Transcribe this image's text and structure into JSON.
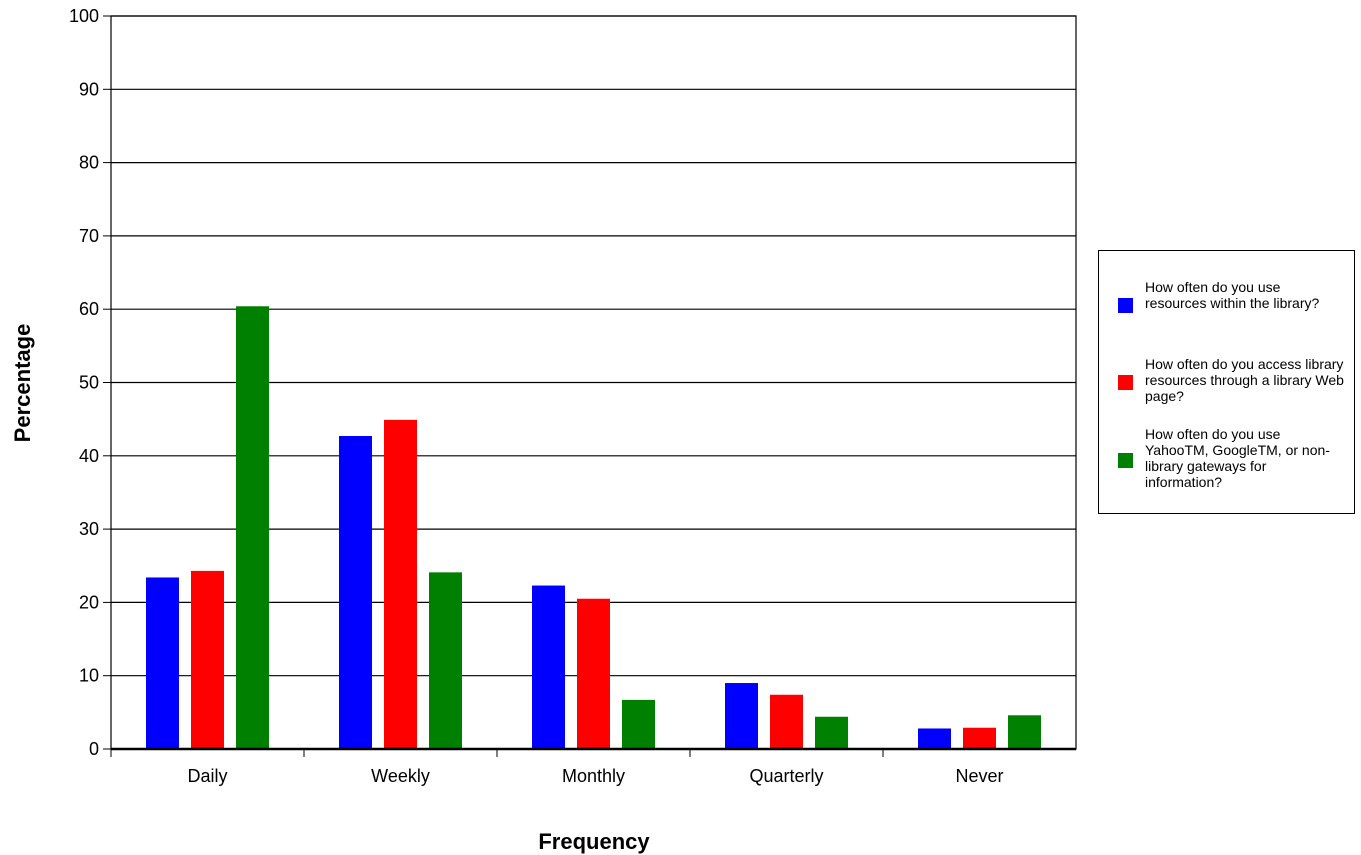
{
  "chart_data": {
    "type": "bar",
    "title": "",
    "xlabel": "Frequency",
    "ylabel": "Percentage",
    "ylim": [
      0,
      100
    ],
    "yticks": [
      0,
      10,
      20,
      30,
      40,
      50,
      60,
      70,
      80,
      90,
      100
    ],
    "grid": true,
    "legend_position": "right",
    "categories": [
      "Daily",
      "Weekly",
      "Monthly",
      "Quarterly",
      "Never"
    ],
    "series": [
      {
        "name": "How often do you use resources within the library?",
        "color": "#0000ff",
        "values": [
          23.4,
          42.7,
          22.3,
          9.0,
          2.8
        ]
      },
      {
        "name": "How often do you access library resources through a library Web page?",
        "color": "#ff0000",
        "values": [
          24.3,
          44.9,
          20.5,
          7.4,
          2.9
        ]
      },
      {
        "name": "How often do you use YahooTM, GoogleTM, or non-library gateways for information?",
        "color": "#008000",
        "values": [
          60.4,
          24.1,
          6.7,
          4.4,
          4.6
        ]
      }
    ]
  }
}
